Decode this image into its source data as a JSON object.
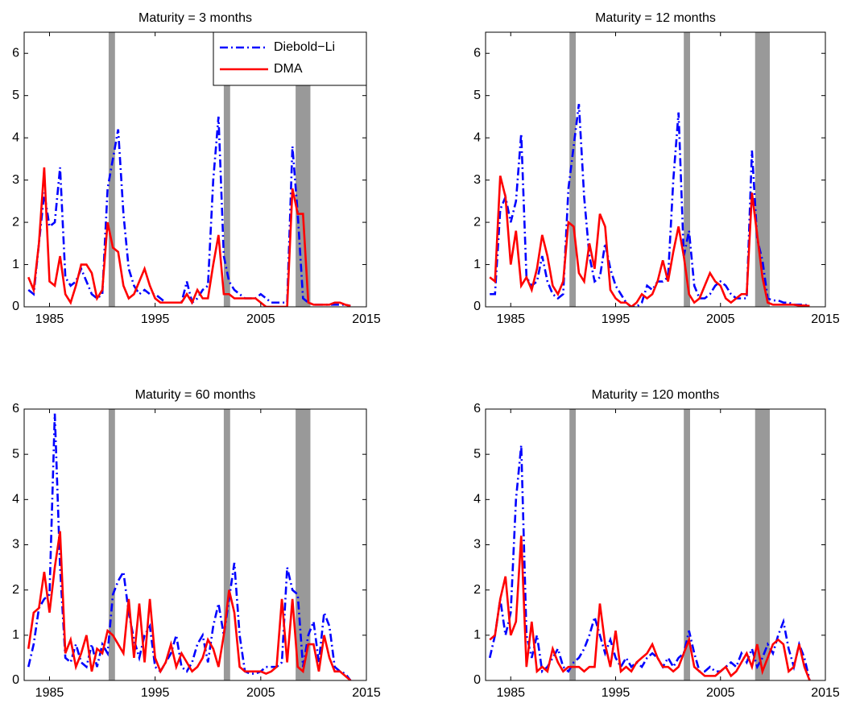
{
  "chart_data": [
    {
      "type": "line",
      "title": "Maturity = 3 months",
      "legend": "upper right",
      "xlim": [
        1982.6,
        2015
      ],
      "xticks": [
        1985,
        1995,
        2005,
        2015
      ],
      "ylim": [
        0,
        6.5
      ],
      "yticks": [
        0,
        1,
        2,
        3,
        4,
        5,
        6
      ],
      "recessions": [
        [
          1990.6,
          1991.2
        ],
        [
          2001.5,
          2002.1
        ],
        [
          2008.3,
          2009.7
        ]
      ],
      "recession_color": "#999999",
      "x": [
        1983,
        1983.5,
        1984,
        1984.5,
        1985,
        1985.5,
        1986,
        1986.5,
        1987,
        1987.5,
        1988,
        1988.5,
        1989,
        1989.5,
        1990,
        1990.5,
        1991,
        1991.5,
        1992,
        1992.5,
        1993,
        1993.5,
        1994,
        1994.5,
        1995,
        1995.5,
        1996,
        1996.5,
        1997,
        1997.5,
        1998,
        1998.5,
        1999,
        1999.5,
        2000,
        2000.5,
        2001,
        2001.5,
        2002,
        2002.5,
        2003,
        2003.5,
        2004,
        2004.5,
        2005,
        2005.5,
        2006,
        2006.5,
        2007,
        2007.5,
        2008,
        2008.5,
        2009,
        2009.5,
        2010,
        2010.5,
        2011,
        2011.5,
        2012,
        2012.5,
        2013,
        2013.5
      ],
      "series": [
        {
          "name": "Diebold−Li",
          "color": "#0000ff",
          "dash": "dashdot",
          "values": [
            0.4,
            0.3,
            1.5,
            2.7,
            1.9,
            2.0,
            3.3,
            0.7,
            0.5,
            0.6,
            0.9,
            0.6,
            0.3,
            0.2,
            0.3,
            2.8,
            3.5,
            4.2,
            2.2,
            0.9,
            0.5,
            0.3,
            0.4,
            0.3,
            0.3,
            0.2,
            0.1,
            0.1,
            0.1,
            0.1,
            0.6,
            0.1,
            0.2,
            0.4,
            0.5,
            3.0,
            4.5,
            1.2,
            0.6,
            0.4,
            0.3,
            0.2,
            0.2,
            0.2,
            0.3,
            0.2,
            0.1,
            0.1,
            0.1,
            0.1,
            3.8,
            2.2,
            0.2,
            0.1,
            0.05,
            0.05,
            0.05,
            0.05,
            0.05,
            0.05,
            0.05,
            0.02
          ]
        },
        {
          "name": "DMA",
          "color": "#ff0000",
          "dash": "solid",
          "values": [
            0.7,
            0.4,
            1.5,
            3.3,
            0.6,
            0.5,
            1.2,
            0.3,
            0.1,
            0.5,
            1.0,
            1.0,
            0.8,
            0.2,
            0.4,
            2.0,
            1.4,
            1.3,
            0.5,
            0.2,
            0.3,
            0.6,
            0.9,
            0.5,
            0.2,
            0.1,
            0.1,
            0.1,
            0.1,
            0.1,
            0.3,
            0.1,
            0.4,
            0.2,
            0.2,
            1.0,
            1.7,
            0.3,
            0.3,
            0.2,
            0.2,
            0.2,
            0.2,
            0.2,
            0.1,
            0.0,
            0.0,
            0.0,
            0.0,
            0.0,
            2.8,
            2.2,
            2.2,
            0.1,
            0.05,
            0.05,
            0.05,
            0.05,
            0.1,
            0.1,
            0.05,
            0.02
          ]
        }
      ]
    },
    {
      "type": "line",
      "title": "Maturity = 12 months",
      "xlim": [
        1982.6,
        2015
      ],
      "xticks": [
        1985,
        1995,
        2005,
        2015
      ],
      "ylim": [
        0,
        6.5
      ],
      "yticks": [
        0,
        1,
        2,
        3,
        4,
        5,
        6
      ],
      "recessions": [
        [
          1990.6,
          1991.2
        ],
        [
          2001.5,
          2002.1
        ],
        [
          2008.3,
          2009.7
        ]
      ],
      "recession_color": "#999999",
      "x": [
        1983,
        1983.5,
        1984,
        1984.5,
        1985,
        1985.5,
        1986,
        1986.5,
        1987,
        1987.5,
        1988,
        1988.5,
        1989,
        1989.5,
        1990,
        1990.5,
        1991,
        1991.5,
        1992,
        1992.5,
        1993,
        1993.5,
        1994,
        1994.5,
        1995,
        1995.5,
        1996,
        1996.5,
        1997,
        1997.5,
        1998,
        1998.5,
        1999,
        1999.5,
        2000,
        2000.5,
        2001,
        2001.5,
        2002,
        2002.5,
        2003,
        2003.5,
        2004,
        2004.5,
        2005,
        2005.5,
        2006,
        2006.5,
        2007,
        2007.5,
        2008,
        2008.5,
        2009,
        2009.5,
        2010,
        2010.5,
        2011,
        2011.5,
        2012,
        2012.5,
        2013,
        2013.5
      ],
      "series": [
        {
          "color": "#0000ff",
          "dash": "dashdot",
          "values": [
            0.3,
            0.3,
            2.3,
            2.6,
            2.0,
            2.5,
            4.1,
            0.7,
            0.5,
            0.6,
            1.2,
            0.6,
            0.3,
            0.2,
            0.3,
            2.8,
            3.8,
            4.8,
            2.6,
            1.2,
            0.6,
            0.7,
            1.5,
            0.9,
            0.5,
            0.3,
            0.1,
            0.0,
            0.0,
            0.1,
            0.5,
            0.4,
            0.6,
            0.6,
            0.7,
            3.0,
            4.6,
            1.2,
            1.8,
            0.5,
            0.2,
            0.2,
            0.3,
            0.5,
            0.6,
            0.5,
            0.3,
            0.2,
            0.2,
            0.2,
            3.7,
            1.6,
            1.1,
            0.2,
            0.15,
            0.15,
            0.1,
            0.1,
            0.05,
            0.05,
            0.05,
            0.02
          ]
        },
        {
          "color": "#ff0000",
          "dash": "solid",
          "values": [
            0.7,
            0.6,
            3.1,
            2.6,
            1.0,
            1.8,
            0.5,
            0.7,
            0.4,
            0.9,
            1.7,
            1.2,
            0.5,
            0.3,
            0.6,
            2.0,
            1.9,
            0.8,
            0.6,
            1.5,
            0.9,
            2.2,
            1.9,
            0.4,
            0.2,
            0.1,
            0.1,
            0.0,
            0.1,
            0.3,
            0.2,
            0.3,
            0.6,
            1.1,
            0.6,
            1.3,
            1.9,
            1.2,
            0.3,
            0.1,
            0.2,
            0.5,
            0.8,
            0.6,
            0.5,
            0.2,
            0.1,
            0.2,
            0.3,
            0.3,
            2.7,
            1.7,
            0.7,
            0.1,
            0.05,
            0.05,
            0.05,
            0.05,
            0.05,
            0.03,
            0.03,
            0.02
          ]
        }
      ]
    },
    {
      "type": "line",
      "title": "Maturity = 60 months",
      "xlim": [
        1982.6,
        2015
      ],
      "xticks": [
        1985,
        1995,
        2005,
        2015
      ],
      "ylim": [
        0,
        6
      ],
      "yticks": [
        0,
        1,
        2,
        3,
        4,
        5,
        6
      ],
      "recessions": [
        [
          1990.6,
          1991.2
        ],
        [
          2001.5,
          2002.1
        ],
        [
          2008.3,
          2009.7
        ]
      ],
      "recession_color": "#999999",
      "x": [
        1983,
        1983.5,
        1984,
        1984.5,
        1985,
        1985.5,
        1986,
        1986.5,
        1987,
        1987.5,
        1988,
        1988.5,
        1989,
        1989.5,
        1990,
        1990.5,
        1991,
        1991.5,
        1992,
        1992.5,
        1993,
        1993.5,
        1994,
        1994.5,
        1995,
        1995.5,
        1996,
        1996.5,
        1997,
        1997.5,
        1998,
        1998.5,
        1999,
        1999.5,
        2000,
        2000.5,
        2001,
        2001.5,
        2002,
        2002.5,
        2003,
        2003.5,
        2004,
        2004.5,
        2005,
        2005.5,
        2006,
        2006.5,
        2007,
        2007.5,
        2008,
        2008.5,
        2009,
        2009.5,
        2010,
        2010.5,
        2011,
        2011.5,
        2012,
        2012.5,
        2013,
        2013.5
      ],
      "series": [
        {
          "color": "#0000ff",
          "dash": "dashdot",
          "values": [
            0.3,
            0.8,
            1.6,
            1.8,
            1.9,
            5.9,
            2.5,
            0.5,
            0.4,
            0.8,
            0.4,
            0.3,
            0.8,
            0.3,
            0.8,
            0.6,
            1.9,
            2.2,
            2.4,
            1.5,
            0.9,
            0.5,
            1.0,
            1.2,
            0.3,
            0.2,
            0.4,
            0.6,
            1.0,
            0.3,
            0.2,
            0.4,
            0.8,
            1.0,
            0.4,
            1.2,
            1.7,
            1.0,
            1.8,
            2.6,
            1.0,
            0.2,
            0.15,
            0.15,
            0.2,
            0.3,
            0.3,
            0.3,
            0.4,
            2.5,
            2.0,
            1.9,
            0.3,
            1.0,
            1.3,
            0.4,
            1.5,
            1.2,
            0.3,
            0.2,
            0.15,
            0.0
          ]
        },
        {
          "color": "#ff0000",
          "dash": "solid",
          "values": [
            0.7,
            1.5,
            1.6,
            2.4,
            1.5,
            2.5,
            3.3,
            0.6,
            0.9,
            0.3,
            0.6,
            1.0,
            0.2,
            0.7,
            0.6,
            1.1,
            1.0,
            0.8,
            0.6,
            1.8,
            0.5,
            1.7,
            0.4,
            1.8,
            0.5,
            0.2,
            0.4,
            0.8,
            0.3,
            0.6,
            0.4,
            0.2,
            0.3,
            0.5,
            0.9,
            0.7,
            0.3,
            1.0,
            2.0,
            1.5,
            0.3,
            0.2,
            0.2,
            0.2,
            0.2,
            0.15,
            0.2,
            0.3,
            1.8,
            0.4,
            1.8,
            0.3,
            0.2,
            0.8,
            0.8,
            0.2,
            1.0,
            0.5,
            0.2,
            0.2,
            0.1,
            0.0
          ]
        }
      ]
    },
    {
      "type": "line",
      "title": "Maturity = 120 months",
      "xlim": [
        1982.6,
        2015
      ],
      "xticks": [
        1985,
        1995,
        2005,
        2015
      ],
      "ylim": [
        0,
        6
      ],
      "yticks": [
        0,
        1,
        2,
        3,
        4,
        5,
        6
      ],
      "recessions": [
        [
          1990.6,
          1991.2
        ],
        [
          2001.5,
          2002.1
        ],
        [
          2008.3,
          2009.7
        ]
      ],
      "recession_color": "#999999",
      "x": [
        1983,
        1983.5,
        1984,
        1984.5,
        1985,
        1985.5,
        1986,
        1986.5,
        1987,
        1987.5,
        1988,
        1988.5,
        1989,
        1989.5,
        1990,
        1990.5,
        1991,
        1991.5,
        1992,
        1992.5,
        1993,
        1993.5,
        1994,
        1994.5,
        1995,
        1995.5,
        1996,
        1996.5,
        1997,
        1997.5,
        1998,
        1998.5,
        1999,
        1999.5,
        2000,
        2000.5,
        2001,
        2001.5,
        2002,
        2002.5,
        2003,
        2003.5,
        2004,
        2004.5,
        2005,
        2005.5,
        2006,
        2006.5,
        2007,
        2007.5,
        2008,
        2008.5,
        2009,
        2009.5,
        2010,
        2010.5,
        2011,
        2011.5,
        2012,
        2012.5,
        2013,
        2013.5
      ],
      "series": [
        {
          "color": "#0000ff",
          "dash": "dashdot",
          "values": [
            0.5,
            1.0,
            1.8,
            1.0,
            1.5,
            4.0,
            5.2,
            1.0,
            0.5,
            1.0,
            0.2,
            0.3,
            0.5,
            0.7,
            0.3,
            0.2,
            0.4,
            0.5,
            0.7,
            1.0,
            1.4,
            1.0,
            0.6,
            0.9,
            0.5,
            0.3,
            0.5,
            0.3,
            0.4,
            0.3,
            0.5,
            0.6,
            0.5,
            0.3,
            0.5,
            0.3,
            0.5,
            0.6,
            1.1,
            0.6,
            0.2,
            0.2,
            0.3,
            0.2,
            0.2,
            0.3,
            0.4,
            0.3,
            0.6,
            0.4,
            0.7,
            0.3,
            0.5,
            0.8,
            0.6,
            1.0,
            1.3,
            0.7,
            0.3,
            0.8,
            0.5,
            0.0
          ]
        },
        {
          "color": "#ff0000",
          "dash": "solid",
          "values": [
            0.9,
            1.0,
            1.8,
            2.3,
            1.0,
            1.3,
            3.2,
            0.3,
            1.3,
            0.2,
            0.3,
            0.2,
            0.7,
            0.4,
            0.2,
            0.3,
            0.3,
            0.3,
            0.2,
            0.3,
            0.3,
            1.7,
            0.8,
            0.3,
            1.1,
            0.2,
            0.3,
            0.2,
            0.4,
            0.5,
            0.6,
            0.8,
            0.5,
            0.3,
            0.3,
            0.2,
            0.3,
            0.6,
            0.9,
            0.3,
            0.2,
            0.1,
            0.1,
            0.1,
            0.2,
            0.3,
            0.1,
            0.2,
            0.4,
            0.6,
            0.3,
            0.8,
            0.2,
            0.5,
            0.8,
            0.9,
            0.8,
            0.2,
            0.3,
            0.8,
            0.3,
            0.0
          ]
        }
      ]
    }
  ]
}
